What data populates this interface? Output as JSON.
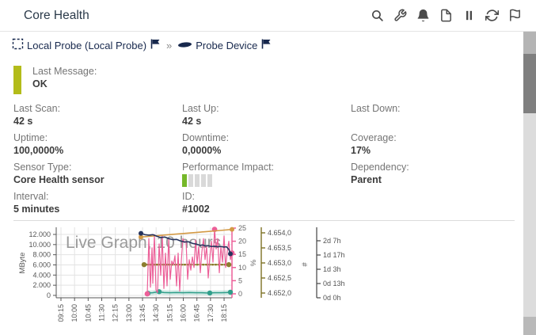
{
  "header": {
    "title": "Core Health",
    "icons": [
      "search",
      "wrench",
      "bell",
      "document",
      "pause",
      "refresh",
      "flag"
    ]
  },
  "breadcrumb": {
    "probe": "Local Probe (Local Probe)",
    "separator": "»",
    "device": "Probe Device"
  },
  "status": {
    "last_message_label": "Last Message:",
    "last_message_value": "OK",
    "color": "#b3bc1a"
  },
  "colors": {
    "impact_active": "#76b82a",
    "impact_inactive": "#d9d9d9",
    "accent_navy": "#17284d"
  },
  "fields": [
    {
      "key": "last-scan",
      "label": "Last Scan:",
      "value": "42 s"
    },
    {
      "key": "last-up",
      "label": "Last Up:",
      "value": "42 s"
    },
    {
      "key": "last-down",
      "label": "Last Down:",
      "value": ""
    },
    {
      "key": "uptime",
      "label": "Uptime:",
      "value": "100,0000%"
    },
    {
      "key": "downtime",
      "label": "Downtime:",
      "value": "0,0000%"
    },
    {
      "key": "coverage",
      "label": "Coverage:",
      "value": "17%"
    },
    {
      "key": "sensor-type",
      "label": "Sensor Type:",
      "value": "Core Health sensor"
    },
    {
      "key": "performance-impact",
      "label": "Performance Impact:",
      "type": "bars",
      "bars_total": 5,
      "bars_active": 1,
      "value": ""
    },
    {
      "key": "dependency",
      "label": "Dependency:",
      "value": "Parent"
    },
    {
      "key": "interval",
      "label": "Interval:",
      "value": "5 minutes"
    },
    {
      "key": "id",
      "label": "ID:",
      "value": "#1002"
    }
  ],
  "chart_data": {
    "type": "line",
    "watermark": "Live Graph, 10 hours",
    "x_ticks": [
      "09:15",
      "10:00",
      "10:45",
      "11:30",
      "12:15",
      "13:00",
      "13:45",
      "14:30",
      "15:15",
      "16:00",
      "16:45",
      "17:30",
      "18:15"
    ],
    "left_axis": {
      "label": "MByte",
      "ticks": [
        "12.000",
        "10.000",
        "8.000",
        "6.000",
        "4.000",
        "2.000",
        "0"
      ],
      "range": [
        0,
        12000
      ]
    },
    "percent_axis": {
      "label": "%",
      "ticks": [
        "25",
        "20",
        "15",
        "10",
        "5",
        "0"
      ],
      "range": [
        0,
        25
      ],
      "color": "#ec5f98"
    },
    "count_axis": {
      "label": "#",
      "ticks": [
        "4.654,0",
        "4.653,5",
        "4.653,0",
        "4.652,5",
        "4.652,0"
      ],
      "range": [
        4652.0,
        4654.0
      ],
      "color": "#7d7224"
    },
    "uptime_axis": {
      "label": "",
      "ticks": [
        "2d 7h",
        "1d 17h",
        "1d 3h",
        "0d 13h",
        "0d 0h"
      ],
      "color": "#444444"
    },
    "grid": true,
    "legend": "none",
    "note": "data present only from ~13:55 to 18:40; values below are in percent-axis units",
    "series": [
      {
        "name": "count-constant",
        "color": "#8b7d2e",
        "width": 2.4,
        "dash": "1.5,2.4",
        "marker_r": 3.2,
        "points": [
          [
            182,
            11.1
          ],
          [
            289,
            11.1
          ]
        ],
        "markers": [
          [
            182,
            11.1
          ],
          [
            289,
            11.1
          ]
        ]
      },
      {
        "name": "teal-low",
        "color": "#2f9e8a",
        "width": 1.5,
        "band": 0.9,
        "marker_r": 3.2,
        "points": [
          [
            186,
            0.3
          ],
          [
            193,
            0.4
          ],
          [
            200,
            0.8
          ],
          [
            207,
            0.5
          ],
          [
            215,
            0.4
          ],
          [
            223,
            0.5
          ],
          [
            231,
            0.4
          ],
          [
            239,
            0.5
          ],
          [
            247,
            0.4
          ],
          [
            255,
            0.4
          ],
          [
            263,
            0.3
          ],
          [
            271,
            0.4
          ],
          [
            279,
            0.4
          ],
          [
            287,
            0.5
          ],
          [
            293,
            0.6
          ]
        ],
        "markers": [
          [
            187,
            0.15
          ],
          [
            201,
            0.8
          ],
          [
            265,
            0.3
          ],
          [
            291,
            0.6
          ]
        ]
      },
      {
        "name": "pink-volatile",
        "color": "#ec5f98",
        "width": 1.2,
        "marker_r": 3.4,
        "points": [
          [
            186,
            0
          ],
          [
            188,
            21
          ],
          [
            190,
            2.5
          ],
          [
            192,
            17.5
          ],
          [
            193,
            4
          ],
          [
            195,
            22.5
          ],
          [
            197,
            1.5
          ],
          [
            199,
            0.5
          ],
          [
            201,
            19
          ],
          [
            203,
            7
          ],
          [
            205,
            22
          ],
          [
            207,
            2
          ],
          [
            209,
            15.5
          ],
          [
            211,
            3
          ],
          [
            213,
            21
          ],
          [
            215,
            5.5
          ],
          [
            217,
            12.5
          ],
          [
            219,
            11
          ],
          [
            221,
            14.5
          ],
          [
            223,
            3
          ],
          [
            225,
            15.5
          ],
          [
            227,
            1
          ],
          [
            229,
            12.5
          ],
          [
            231,
            21
          ],
          [
            233,
            19.5
          ],
          [
            235,
            20
          ],
          [
            237,
            5.5
          ],
          [
            239,
            13
          ],
          [
            241,
            9
          ],
          [
            243,
            14
          ],
          [
            245,
            10
          ],
          [
            247,
            20.5
          ],
          [
            249,
            11.5
          ],
          [
            251,
            18
          ],
          [
            253,
            8
          ],
          [
            255,
            16
          ],
          [
            257,
            21
          ],
          [
            259,
            13
          ],
          [
            261,
            18
          ],
          [
            263,
            6
          ],
          [
            265,
            14
          ],
          [
            267,
            20
          ],
          [
            269,
            12
          ],
          [
            271,
            24.5
          ],
          [
            273,
            17
          ],
          [
            275,
            21
          ],
          [
            277,
            8
          ],
          [
            279,
            18
          ],
          [
            281,
            12
          ],
          [
            283,
            22
          ],
          [
            285,
            10
          ],
          [
            287,
            16
          ],
          [
            289,
            20
          ],
          [
            291,
            13
          ],
          [
            293,
            15.5
          ]
        ],
        "markers": [
          [
            186,
            0
          ],
          [
            271,
            24.5
          ],
          [
            293,
            15.5
          ]
        ]
      },
      {
        "name": "orange-rising",
        "color": "#d49a45",
        "width": 1.6,
        "marker_r": 3,
        "points": [
          [
            178,
            21.6
          ],
          [
            198,
            22.1
          ],
          [
            218,
            22.6
          ],
          [
            238,
            23.1
          ],
          [
            258,
            23.6
          ],
          [
            278,
            24.1
          ],
          [
            293,
            24.5
          ]
        ],
        "markers": [
          [
            178,
            21.6
          ],
          [
            293,
            24.5
          ]
        ]
      },
      {
        "name": "navy-declining",
        "color": "#26335d",
        "width": 1.6,
        "marker_r": 3,
        "points": [
          [
            178,
            23
          ],
          [
            183,
            22.5
          ],
          [
            188,
            22.3
          ],
          [
            193,
            22.5
          ],
          [
            198,
            21.9
          ],
          [
            203,
            21.4
          ],
          [
            208,
            21.6
          ],
          [
            213,
            21.0
          ],
          [
            218,
            20.6
          ],
          [
            223,
            20.7
          ],
          [
            228,
            20.1
          ],
          [
            233,
            19.7
          ],
          [
            238,
            19.8
          ],
          [
            243,
            19.2
          ],
          [
            248,
            18.9
          ],
          [
            253,
            18.4
          ],
          [
            256,
            18.6
          ],
          [
            259,
            18.2
          ],
          [
            263,
            18.3
          ],
          [
            267,
            18.0
          ],
          [
            271,
            18.1
          ],
          [
            275,
            17.9
          ],
          [
            279,
            18.0
          ],
          [
            283,
            17.8
          ],
          [
            286,
            17.9
          ],
          [
            289,
            16.9
          ],
          [
            291,
            15.2
          ]
        ],
        "markers": [
          [
            178,
            23
          ],
          [
            291,
            15.2
          ]
        ]
      }
    ]
  }
}
